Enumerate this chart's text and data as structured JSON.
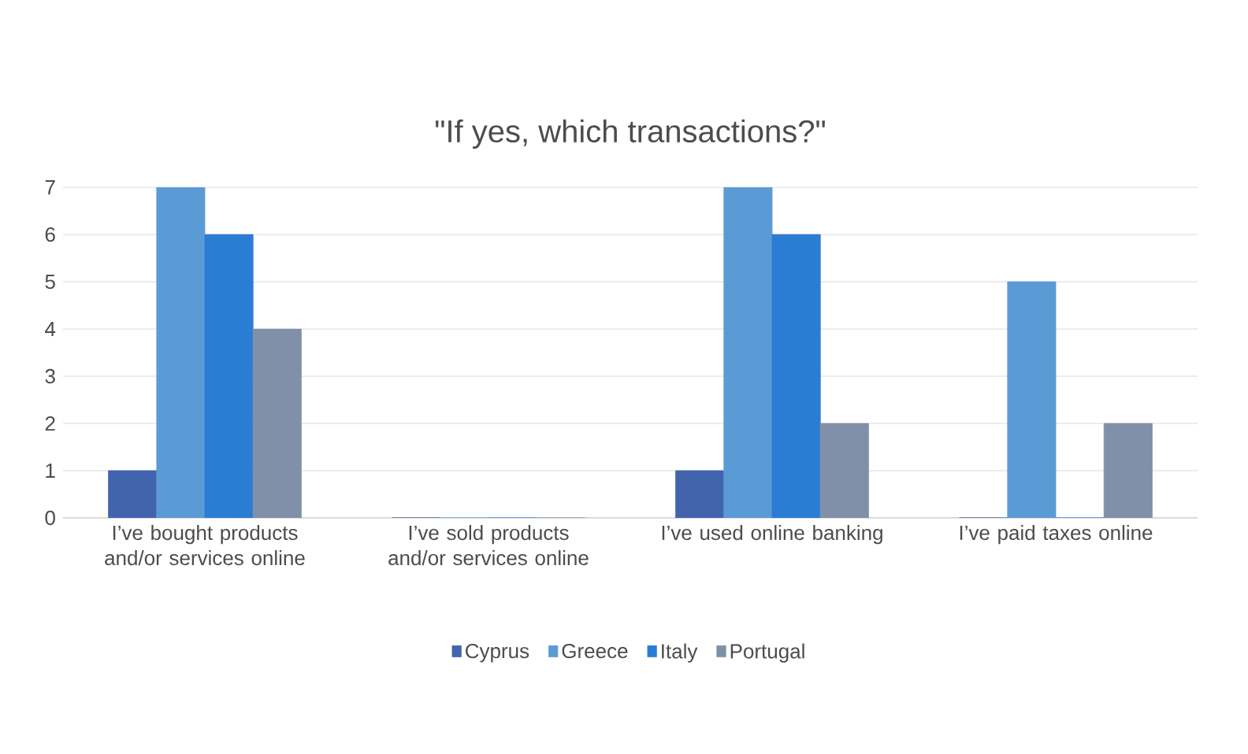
{
  "chart_data": {
    "type": "bar",
    "title": "\"If yes, which transactions?\"",
    "categories": [
      "I’ve bought products and/or services online",
      "I’ve sold products and/or services online",
      "I’ve used online banking",
      "I’ve paid taxes online"
    ],
    "series": [
      {
        "name": "Cyprus",
        "color": "#4164ad",
        "values": [
          1,
          0,
          1,
          0
        ]
      },
      {
        "name": "Greece",
        "color": "#5b9bd5",
        "values": [
          7,
          0,
          7,
          5
        ]
      },
      {
        "name": "Italy",
        "color": "#2b7cd3",
        "values": [
          6,
          0,
          6,
          0
        ]
      },
      {
        "name": "Portugal",
        "color": "#8090a8",
        "values": [
          4,
          0,
          2,
          2
        ]
      }
    ],
    "ylim": [
      0,
      7
    ],
    "yticks": [
      0,
      1,
      2,
      3,
      4,
      5,
      6,
      7
    ],
    "grid": "y",
    "legend": "bottom"
  }
}
